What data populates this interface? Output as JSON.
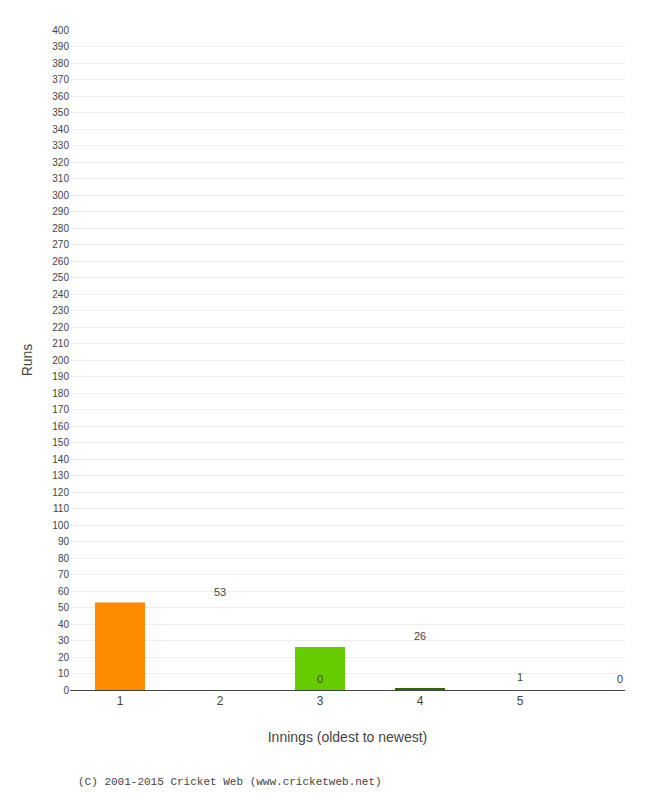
{
  "chart_data": {
    "type": "bar",
    "categories": [
      1,
      2,
      3,
      4,
      5
    ],
    "values": [
      53,
      0,
      26,
      1,
      0
    ],
    "colors": [
      "#FF8C00",
      "#FFFFFF",
      "#66CC00",
      "#336600",
      "#FFFFFF"
    ],
    "xlabel": "Innings (oldest to newest)",
    "ylabel": "Runs",
    "ylim": [
      0,
      400
    ],
    "yticks": [
      0,
      10,
      20,
      30,
      40,
      50,
      60,
      70,
      80,
      90,
      100,
      110,
      120,
      130,
      140,
      150,
      160,
      170,
      180,
      190,
      200,
      210,
      220,
      230,
      240,
      250,
      260,
      270,
      280,
      290,
      300,
      310,
      320,
      330,
      340,
      350,
      360,
      370,
      380,
      390,
      400
    ],
    "grid": true,
    "data_labels": true,
    "annotations": [
      "(C) 2001-2015 Cricket Web (www.cricketweb.net)"
    ]
  }
}
